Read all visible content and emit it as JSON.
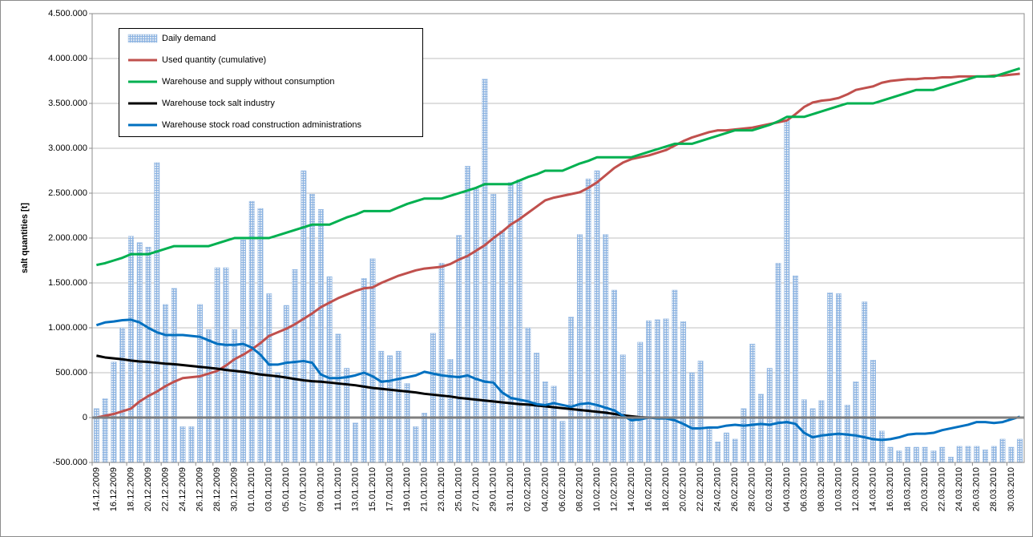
{
  "chart_data": {
    "type": "combo",
    "y_label": "salt quantities [t]",
    "ylim": [
      -500000,
      4500000
    ],
    "yticks": [
      {
        "value": -500000,
        "label": "-500.000"
      },
      0,
      {
        "value": 500000,
        "label": "500.000"
      },
      {
        "value": 1000000,
        "label": "1.000.000"
      },
      {
        "value": 1500000,
        "label": "1.500.000"
      },
      {
        "value": 2000000,
        "label": "2.000.000"
      },
      {
        "value": 2500000,
        "label": "2.500.000"
      },
      {
        "value": 3000000,
        "label": "3.000.000"
      },
      {
        "value": 3500000,
        "label": "3.500.000"
      },
      {
        "value": 4000000,
        "label": "4.000.000"
      },
      {
        "value": 4500000,
        "label": "4.500.000"
      }
    ],
    "grid": true,
    "legend": "upper left",
    "categories": [
      "14.12.2009",
      null,
      "16.12.2009",
      null,
      "18.12.2009",
      null,
      "20.12.2009",
      null,
      "22.12.2009",
      null,
      "24.12.2009",
      null,
      "26.12.2009",
      null,
      "28.12.2009",
      null,
      "30.12.2009",
      null,
      "01.01.2010",
      null,
      "03.01.2010",
      null,
      "05.01.2010",
      null,
      "07.01.2010",
      null,
      "09.01.2010",
      null,
      "11.01.2010",
      null,
      "13.01.2010",
      null,
      "15.01.2010",
      null,
      "17.01.2010",
      null,
      "19.01.2010",
      null,
      "21.01.2010",
      null,
      "23.01.2010",
      null,
      "25.01.2010",
      null,
      "27.01.2010",
      null,
      "29.01.2010",
      null,
      "31.01.2010",
      null,
      "02.02.2010",
      null,
      "04.02.2010",
      null,
      "06.02.2010",
      null,
      "08.02.2010",
      null,
      "10.02.2010",
      null,
      "12.02.2010",
      null,
      "14.02.2010",
      null,
      "16.02.2010",
      null,
      "18.02.2010",
      null,
      "20.02.2010",
      null,
      "22.02.2010",
      null,
      "24.02.2010",
      null,
      "26.02.2010",
      null,
      "28.02.2010",
      null,
      "02.03.2010",
      null,
      "04.03.2010",
      null,
      "06.03.2010",
      null,
      "08.03.2010",
      null,
      "10.03.2010",
      null,
      "12.03.2010",
      null,
      "14.03.2010",
      null,
      "16.03.2010",
      null,
      "18.03.2010",
      null,
      "20.03.2010",
      null,
      "22.03.2010",
      null,
      "24.03.2010",
      null,
      "26.03.2010",
      null,
      "28.03.2010",
      null,
      "30.03.2010",
      null
    ],
    "series": [
      {
        "name": "Daily demand",
        "type": "bar",
        "color": "#8db4e2",
        "values": [
          100000,
          210000,
          620000,
          1000000,
          2020000,
          1950000,
          1900000,
          2840000,
          1260000,
          1440000,
          -100000,
          -100000,
          1260000,
          980000,
          1670000,
          1670000,
          980000,
          1980000,
          2410000,
          2330000,
          1380000,
          500000,
          1250000,
          1650000,
          2750000,
          2490000,
          2320000,
          1570000,
          930000,
          550000,
          -60000,
          1550000,
          1770000,
          740000,
          690000,
          740000,
          380000,
          -100000,
          50000,
          940000,
          1720000,
          650000,
          2030000,
          2800000,
          2550000,
          3770000,
          2490000,
          2080000,
          2620000,
          2650000,
          1000000,
          720000,
          400000,
          350000,
          -40000,
          1120000,
          2040000,
          2660000,
          2750000,
          2040000,
          1420000,
          700000,
          0,
          840000,
          1080000,
          1090000,
          1100000,
          1420000,
          1070000,
          500000,
          630000,
          -100000,
          -270000,
          -170000,
          -240000,
          100000,
          820000,
          260000,
          550000,
          1720000,
          3310000,
          1580000,
          200000,
          100000,
          190000,
          1390000,
          1380000,
          140000,
          400000,
          1290000,
          640000,
          -150000,
          -330000,
          -370000,
          -330000,
          -330000,
          -330000,
          -370000,
          -330000,
          -440000,
          -320000,
          -320000,
          -320000,
          -360000,
          -320000,
          -240000,
          -330000,
          -240000
        ]
      },
      {
        "name": "Used quantity  (cumulative)",
        "type": "line",
        "color": "#c0504d",
        "values": [
          0,
          20000,
          40000,
          70000,
          100000,
          180000,
          240000,
          290000,
          350000,
          400000,
          440000,
          450000,
          460000,
          490000,
          520000,
          580000,
          650000,
          700000,
          760000,
          830000,
          910000,
          950000,
          990000,
          1040000,
          1100000,
          1160000,
          1230000,
          1280000,
          1330000,
          1370000,
          1410000,
          1440000,
          1450000,
          1500000,
          1540000,
          1580000,
          1610000,
          1640000,
          1660000,
          1670000,
          1680000,
          1710000,
          1760000,
          1800000,
          1860000,
          1920000,
          2000000,
          2070000,
          2150000,
          2210000,
          2280000,
          2350000,
          2420000,
          2450000,
          2470000,
          2490000,
          2510000,
          2560000,
          2620000,
          2700000,
          2780000,
          2840000,
          2880000,
          2900000,
          2920000,
          2950000,
          2980000,
          3030000,
          3080000,
          3120000,
          3150000,
          3180000,
          3200000,
          3200000,
          3210000,
          3220000,
          3230000,
          3250000,
          3270000,
          3290000,
          3310000,
          3380000,
          3460000,
          3510000,
          3530000,
          3540000,
          3560000,
          3600000,
          3650000,
          3670000,
          3690000,
          3730000,
          3750000,
          3760000,
          3770000,
          3770000,
          3780000,
          3780000,
          3790000,
          3790000,
          3800000,
          3800000,
          3800000,
          3800000,
          3810000,
          3810000,
          3820000,
          3830000
        ]
      },
      {
        "name": "Warehouse and supply without consumption",
        "type": "line",
        "color": "#00b050",
        "values": [
          1700000,
          1720000,
          1750000,
          1780000,
          1820000,
          1820000,
          1820000,
          1850000,
          1880000,
          1910000,
          1910000,
          1910000,
          1910000,
          1910000,
          1940000,
          1970000,
          2000000,
          2000000,
          2000000,
          2000000,
          2000000,
          2030000,
          2060000,
          2090000,
          2120000,
          2150000,
          2150000,
          2150000,
          2190000,
          2230000,
          2260000,
          2300000,
          2300000,
          2300000,
          2300000,
          2340000,
          2380000,
          2410000,
          2440000,
          2440000,
          2440000,
          2470000,
          2500000,
          2530000,
          2560000,
          2600000,
          2600000,
          2600000,
          2600000,
          2640000,
          2680000,
          2710000,
          2750000,
          2750000,
          2750000,
          2790000,
          2830000,
          2860000,
          2900000,
          2900000,
          2900000,
          2900000,
          2900000,
          2930000,
          2960000,
          2990000,
          3020000,
          3050000,
          3050000,
          3050000,
          3080000,
          3110000,
          3140000,
          3170000,
          3200000,
          3200000,
          3200000,
          3230000,
          3260000,
          3300000,
          3350000,
          3350000,
          3350000,
          3380000,
          3410000,
          3440000,
          3470000,
          3500000,
          3500000,
          3500000,
          3500000,
          3530000,
          3560000,
          3590000,
          3620000,
          3650000,
          3650000,
          3650000,
          3680000,
          3710000,
          3740000,
          3770000,
          3800000,
          3800000,
          3800000,
          3830000,
          3860000,
          3890000
        ]
      },
      {
        "name": "Warehouse tock salt industry",
        "type": "line",
        "color": "#000000",
        "values": [
          690000,
          670000,
          660000,
          650000,
          635000,
          625000,
          620000,
          610000,
          600000,
          595000,
          585000,
          575000,
          565000,
          555000,
          545000,
          530000,
          520000,
          510000,
          495000,
          480000,
          470000,
          460000,
          445000,
          430000,
          415000,
          405000,
          400000,
          390000,
          380000,
          370000,
          360000,
          345000,
          330000,
          320000,
          310000,
          300000,
          290000,
          280000,
          265000,
          255000,
          245000,
          235000,
          220000,
          210000,
          200000,
          190000,
          180000,
          170000,
          160000,
          150000,
          145000,
          135000,
          125000,
          115000,
          105000,
          95000,
          85000,
          75000,
          65000,
          55000,
          40000,
          25000,
          15000,
          5000,
          0,
          0,
          0,
          0,
          0,
          0,
          0,
          0,
          0,
          0,
          0,
          0,
          0,
          0,
          0,
          0,
          0,
          0,
          0,
          0,
          0,
          0,
          0,
          0,
          0,
          0,
          0,
          0,
          0,
          0,
          0,
          0,
          0,
          0,
          0,
          0,
          0,
          0,
          0,
          0,
          0,
          0,
          0,
          0
        ]
      },
      {
        "name": "Warehouse stock road construction administrations",
        "type": "line",
        "color": "#0070c0",
        "values": [
          1030000,
          1060000,
          1070000,
          1085000,
          1090000,
          1060000,
          1000000,
          950000,
          920000,
          920000,
          920000,
          910000,
          900000,
          860000,
          820000,
          810000,
          810000,
          820000,
          780000,
          700000,
          590000,
          590000,
          610000,
          620000,
          630000,
          610000,
          480000,
          440000,
          440000,
          450000,
          470000,
          500000,
          460000,
          400000,
          410000,
          430000,
          450000,
          470000,
          510000,
          490000,
          470000,
          460000,
          450000,
          470000,
          430000,
          400000,
          390000,
          280000,
          220000,
          200000,
          180000,
          150000,
          140000,
          160000,
          140000,
          120000,
          150000,
          160000,
          140000,
          110000,
          80000,
          20000,
          -30000,
          -20000,
          0,
          -10000,
          -10000,
          -30000,
          -70000,
          -120000,
          -120000,
          -110000,
          -110000,
          -90000,
          -80000,
          -90000,
          -80000,
          -70000,
          -80000,
          -60000,
          -50000,
          -70000,
          -170000,
          -220000,
          -200000,
          -190000,
          -180000,
          -190000,
          -200000,
          -220000,
          -240000,
          -250000,
          -240000,
          -220000,
          -190000,
          -180000,
          -180000,
          -170000,
          -140000,
          -120000,
          -100000,
          -80000,
          -50000,
          -50000,
          -60000,
          -50000,
          -20000,
          10000
        ]
      }
    ]
  }
}
